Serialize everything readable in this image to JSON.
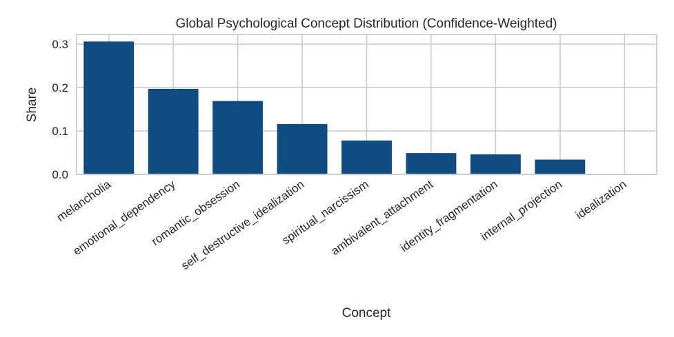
{
  "chart_data": {
    "type": "bar",
    "title": "Global Psychological Concept Distribution (Confidence-Weighted)",
    "xlabel": "Concept",
    "ylabel": "Share",
    "categories": [
      "melancholia",
      "emotional_dependency",
      "romantic_obsession",
      "self_destructive_idealization",
      "spiritual_narcissism",
      "ambivalent_attachment",
      "identity_fragmentation",
      "internal_projection",
      "idealization"
    ],
    "values": [
      0.306,
      0.197,
      0.169,
      0.116,
      0.078,
      0.049,
      0.046,
      0.034,
      0.0
    ],
    "ylim": [
      0,
      0.3223
    ],
    "yticks": [
      0.0,
      0.1,
      0.2,
      0.3
    ],
    "ytick_labels": [
      "0.0",
      "0.1",
      "0.2",
      "0.3"
    ],
    "grid": true,
    "bar_color": "#0f4c81"
  }
}
